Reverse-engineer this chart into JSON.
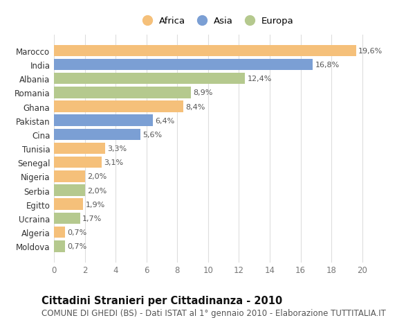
{
  "categories": [
    "Moldova",
    "Algeria",
    "Ucraina",
    "Egitto",
    "Serbia",
    "Nigeria",
    "Senegal",
    "Tunisia",
    "Cina",
    "Pakistan",
    "Ghana",
    "Romania",
    "Albania",
    "India",
    "Marocco"
  ],
  "values": [
    0.7,
    0.7,
    1.7,
    1.9,
    2.0,
    2.0,
    3.1,
    3.3,
    5.6,
    6.4,
    8.4,
    8.9,
    12.4,
    16.8,
    19.6
  ],
  "continents": [
    "Europa",
    "Africa",
    "Europa",
    "Africa",
    "Europa",
    "Africa",
    "Africa",
    "Africa",
    "Asia",
    "Asia",
    "Africa",
    "Europa",
    "Europa",
    "Asia",
    "Africa"
  ],
  "labels": [
    "0,7%",
    "0,7%",
    "1,7%",
    "1,9%",
    "2,0%",
    "2,0%",
    "3,1%",
    "3,3%",
    "5,6%",
    "6,4%",
    "8,4%",
    "8,9%",
    "12,4%",
    "16,8%",
    "19,6%"
  ],
  "colors": {
    "Africa": "#F5C07A",
    "Asia": "#7B9FD4",
    "Europa": "#B5C98E"
  },
  "xlim": [
    0,
    21
  ],
  "xticks": [
    0,
    2,
    4,
    6,
    8,
    10,
    12,
    14,
    16,
    18,
    20
  ],
  "title": "Cittadini Stranieri per Cittadinanza - 2010",
  "subtitle": "COMUNE DI GHEDI (BS) - Dati ISTAT al 1° gennaio 2010 - Elaborazione TUTTITALIA.IT",
  "bg_color": "#ffffff",
  "grid_color": "#dddddd",
  "bar_height": 0.82,
  "label_fontsize": 8.0,
  "title_fontsize": 10.5,
  "subtitle_fontsize": 8.5,
  "tick_fontsize": 8.5
}
